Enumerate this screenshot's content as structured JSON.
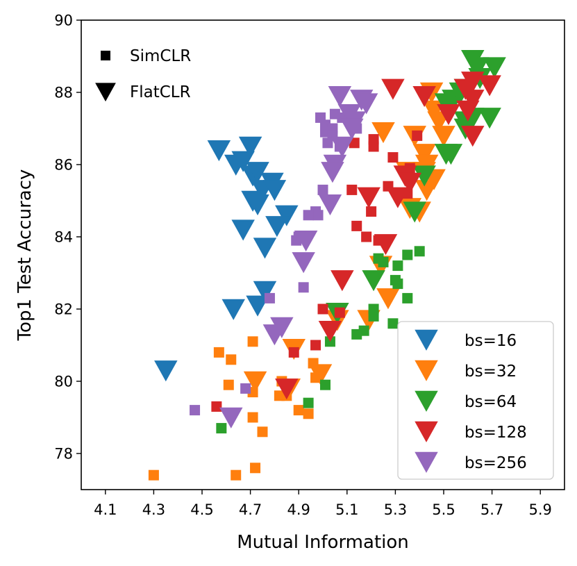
{
  "chart_data": {
    "type": "scatter",
    "title": "",
    "xlabel": "Mutual Information",
    "ylabel": "Top1 Test Accuracy",
    "xlim": [
      4.0,
      6.0
    ],
    "ylim": [
      77.0,
      90.0
    ],
    "xticks": [
      4.1,
      4.3,
      4.5,
      4.7,
      4.9,
      5.1,
      5.3,
      5.5,
      5.7,
      5.9
    ],
    "xtick_labels": [
      "4.1",
      "4.3",
      "4.5",
      "4.7",
      "4.9",
      "5.1",
      "5.3",
      "5.5",
      "5.7",
      "5.9"
    ],
    "yticks": [
      78,
      80,
      82,
      84,
      86,
      88,
      90
    ],
    "ytick_labels": [
      "78",
      "80",
      "82",
      "84",
      "86",
      "88",
      "90"
    ],
    "grid": false,
    "marker_legend": {
      "position": "top-left",
      "entries": [
        {
          "label": "SimCLR",
          "marker": "square"
        },
        {
          "label": "FlatCLR",
          "marker": "triangle-down"
        }
      ]
    },
    "color_legend": {
      "position": "bottom-right",
      "entries": [
        {
          "label": "bs=16",
          "color": "#1f77b4"
        },
        {
          "label": "bs=32",
          "color": "#ff7f0e"
        },
        {
          "label": "bs=64",
          "color": "#2ca02c"
        },
        {
          "label": "bs=128",
          "color": "#d62728"
        },
        {
          "label": "bs=256",
          "color": "#9467bd"
        }
      ]
    },
    "series": [
      {
        "name": "bs=16",
        "color": "#1f77b4",
        "SimCLR": [],
        "FlatCLR": [
          [
            4.57,
            86.4
          ],
          [
            4.7,
            86.5
          ],
          [
            4.64,
            86.0
          ],
          [
            4.67,
            86.1
          ],
          [
            4.71,
            85.7
          ],
          [
            4.73,
            85.8
          ],
          [
            4.75,
            85.3
          ],
          [
            4.79,
            85.5
          ],
          [
            4.8,
            85.3
          ],
          [
            4.71,
            85.0
          ],
          [
            4.73,
            84.9
          ],
          [
            4.85,
            84.6
          ],
          [
            4.81,
            84.3
          ],
          [
            4.67,
            84.2
          ],
          [
            4.76,
            83.7
          ],
          [
            4.76,
            82.5
          ],
          [
            4.73,
            82.1
          ],
          [
            4.63,
            82.0
          ],
          [
            4.35,
            80.3
          ]
        ]
      },
      {
        "name": "bs=32",
        "color": "#ff7f0e",
        "SimCLR": [
          [
            4.57,
            80.8
          ],
          [
            4.62,
            80.6
          ],
          [
            4.71,
            81.1
          ],
          [
            4.61,
            79.9
          ],
          [
            4.71,
            79.7
          ],
          [
            4.83,
            80.0
          ],
          [
            4.82,
            79.6
          ],
          [
            4.85,
            79.6
          ],
          [
            4.71,
            79.0
          ],
          [
            4.75,
            78.6
          ],
          [
            4.3,
            77.4
          ],
          [
            4.64,
            77.4
          ],
          [
            4.72,
            77.6
          ],
          [
            4.96,
            80.5
          ],
          [
            4.97,
            80.1
          ],
          [
            4.9,
            79.2
          ],
          [
            4.94,
            79.1
          ]
        ],
        "FlatCLR": [
          [
            5.38,
            86.8
          ],
          [
            5.45,
            88.0
          ],
          [
            5.46,
            87.5
          ],
          [
            5.48,
            87.2
          ],
          [
            5.5,
            86.8
          ],
          [
            5.42,
            86.3
          ],
          [
            5.43,
            86.0
          ],
          [
            5.35,
            85.8
          ],
          [
            5.42,
            85.8
          ],
          [
            5.46,
            85.6
          ],
          [
            5.43,
            85.3
          ],
          [
            5.36,
            84.8
          ],
          [
            5.4,
            84.7
          ],
          [
            5.25,
            86.9
          ],
          [
            5.24,
            83.2
          ],
          [
            5.27,
            82.3
          ],
          [
            5.19,
            81.7
          ],
          [
            5.06,
            81.7
          ],
          [
            4.72,
            80.0
          ],
          [
            4.88,
            80.9
          ],
          [
            4.99,
            80.2
          ],
          [
            4.86,
            79.8
          ]
        ]
      },
      {
        "name": "bs=64",
        "color": "#2ca02c",
        "SimCLR": [
          [
            5.23,
            83.4
          ],
          [
            5.25,
            83.3
          ],
          [
            5.31,
            83.2
          ],
          [
            5.35,
            83.5
          ],
          [
            5.4,
            83.6
          ],
          [
            5.3,
            82.8
          ],
          [
            5.31,
            82.7
          ],
          [
            5.35,
            82.3
          ],
          [
            5.21,
            82.0
          ],
          [
            5.21,
            81.8
          ],
          [
            5.06,
            82.0
          ],
          [
            5.14,
            81.3
          ],
          [
            5.17,
            81.4
          ],
          [
            5.29,
            81.6
          ],
          [
            5.03,
            81.1
          ],
          [
            5.01,
            79.9
          ],
          [
            4.94,
            79.4
          ],
          [
            4.58,
            78.7
          ]
        ],
        "FlatCLR": [
          [
            5.62,
            88.9
          ],
          [
            5.64,
            88.7
          ],
          [
            5.71,
            88.7
          ],
          [
            5.65,
            88.4
          ],
          [
            5.59,
            88.1
          ],
          [
            5.57,
            88.0
          ],
          [
            5.54,
            87.8
          ],
          [
            5.51,
            87.7
          ],
          [
            5.59,
            87.2
          ],
          [
            5.62,
            87.3
          ],
          [
            5.69,
            87.3
          ],
          [
            5.59,
            87.0
          ],
          [
            5.51,
            86.3
          ],
          [
            5.53,
            86.3
          ],
          [
            5.42,
            85.7
          ],
          [
            5.38,
            84.7
          ],
          [
            5.21,
            82.8
          ],
          [
            5.06,
            81.9
          ]
        ]
      },
      {
        "name": "bs=128",
        "color": "#d62728",
        "SimCLR": [
          [
            5.39,
            86.8
          ],
          [
            5.21,
            86.7
          ],
          [
            5.13,
            86.6
          ],
          [
            5.21,
            86.5
          ],
          [
            5.29,
            86.2
          ],
          [
            5.36,
            85.9
          ],
          [
            5.27,
            85.4
          ],
          [
            5.12,
            85.3
          ],
          [
            5.35,
            85.2
          ],
          [
            5.2,
            84.7
          ],
          [
            5.14,
            84.3
          ],
          [
            5.18,
            84.0
          ],
          [
            5.23,
            83.9
          ],
          [
            5.07,
            81.9
          ],
          [
            5.0,
            82.0
          ],
          [
            4.97,
            81.0
          ],
          [
            4.88,
            80.8
          ],
          [
            4.56,
            79.3
          ]
        ],
        "FlatCLR": [
          [
            5.29,
            88.1
          ],
          [
            5.42,
            87.9
          ],
          [
            5.59,
            88.1
          ],
          [
            5.62,
            88.3
          ],
          [
            5.69,
            88.2
          ],
          [
            5.62,
            87.8
          ],
          [
            5.52,
            87.4
          ],
          [
            5.6,
            87.5
          ],
          [
            5.62,
            86.8
          ],
          [
            5.34,
            85.7
          ],
          [
            5.36,
            85.5
          ],
          [
            5.31,
            85.1
          ],
          [
            5.19,
            85.1
          ],
          [
            5.26,
            83.8
          ],
          [
            5.08,
            82.8
          ],
          [
            5.03,
            81.4
          ],
          [
            4.85,
            79.8
          ]
        ]
      },
      {
        "name": "bs=256",
        "color": "#9467bd",
        "SimCLR": [
          [
            4.99,
            87.3
          ],
          [
            5.05,
            87.4
          ],
          [
            5.08,
            87.3
          ],
          [
            5.01,
            87.1
          ],
          [
            5.04,
            87.0
          ],
          [
            5.01,
            86.9
          ],
          [
            5.04,
            86.8
          ],
          [
            5.14,
            87.0
          ],
          [
            5.02,
            86.6
          ],
          [
            5.07,
            86.5
          ],
          [
            5.0,
            85.3
          ],
          [
            4.97,
            84.7
          ],
          [
            4.98,
            84.6
          ],
          [
            4.94,
            84.6
          ],
          [
            4.9,
            84.0
          ],
          [
            4.89,
            83.9
          ],
          [
            4.92,
            82.6
          ],
          [
            4.78,
            82.3
          ],
          [
            4.68,
            79.8
          ],
          [
            4.47,
            79.2
          ]
        ],
        "FlatCLR": [
          [
            5.07,
            87.9
          ],
          [
            5.16,
            87.8
          ],
          [
            5.18,
            87.7
          ],
          [
            5.11,
            87.4
          ],
          [
            5.13,
            87.2
          ],
          [
            5.12,
            87.0
          ],
          [
            5.08,
            86.5
          ],
          [
            5.05,
            86.0
          ],
          [
            5.04,
            85.8
          ],
          [
            5.03,
            84.9
          ],
          [
            4.93,
            83.9
          ],
          [
            4.92,
            83.3
          ],
          [
            4.83,
            81.5
          ],
          [
            4.8,
            81.3
          ],
          [
            4.62,
            79.0
          ]
        ]
      }
    ]
  }
}
